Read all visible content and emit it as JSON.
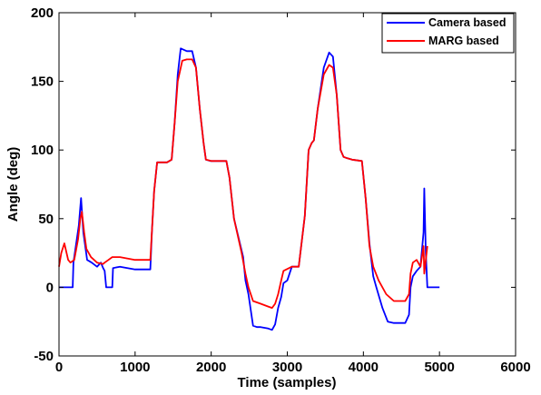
{
  "chart_data": {
    "type": "line",
    "xlabel": "Time (samples)",
    "ylabel": "Angle (deg)",
    "xlim": [
      0,
      6000
    ],
    "ylim": [
      -50,
      200
    ],
    "xticks": [
      0,
      1000,
      2000,
      3000,
      4000,
      5000,
      6000
    ],
    "yticks": [
      -50,
      0,
      50,
      100,
      150,
      200
    ],
    "grid": false,
    "legend_position": "top-right",
    "series": [
      {
        "name": "Camera based",
        "color": "#0000ff",
        "x": [
          0,
          180,
          190,
          260,
          290,
          320,
          370,
          430,
          500,
          550,
          580,
          600,
          620,
          700,
          710,
          800,
          1000,
          1150,
          1200,
          1220,
          1250,
          1290,
          1420,
          1480,
          1520,
          1560,
          1600,
          1680,
          1750,
          1800,
          1850,
          1900,
          1930,
          1990,
          2200,
          2240,
          2300,
          2420,
          2450,
          2490,
          2550,
          2600,
          2650,
          2750,
          2800,
          2840,
          2880,
          2920,
          2950,
          3000,
          3060,
          3150,
          3230,
          3280,
          3320,
          3350,
          3400,
          3480,
          3550,
          3600,
          3650,
          3700,
          3740,
          3790,
          3850,
          3980,
          4030,
          4080,
          4130,
          4170,
          4250,
          4320,
          4400,
          4550,
          4600,
          4620,
          4650,
          4700,
          4750,
          4790,
          4800,
          4820,
          4840,
          4900,
          5000
        ],
        "y": [
          0,
          0,
          18,
          45,
          65,
          40,
          20,
          18,
          15,
          18,
          14,
          12,
          0,
          0,
          14,
          15,
          13,
          13,
          13,
          40,
          70,
          91,
          91,
          93,
          120,
          155,
          174,
          172,
          172,
          160,
          130,
          105,
          93,
          92,
          92,
          80,
          50,
          22,
          5,
          -5,
          -28,
          -29,
          -29,
          -30,
          -31,
          -27,
          -15,
          -7,
          3,
          5,
          15,
          15,
          52,
          100,
          105,
          107,
          130,
          160,
          171,
          168,
          140,
          100,
          95,
          94,
          93,
          92,
          65,
          32,
          8,
          0,
          -15,
          -25,
          -26,
          -26,
          -20,
          0,
          8,
          12,
          15,
          40,
          72,
          25,
          0,
          0,
          0
        ]
      },
      {
        "name": "MARG based",
        "color": "#ff0000",
        "x": [
          0,
          30,
          70,
          120,
          150,
          200,
          250,
          280,
          300,
          330,
          360,
          420,
          500,
          580,
          600,
          650,
          700,
          800,
          1000,
          1150,
          1200,
          1220,
          1250,
          1290,
          1420,
          1480,
          1520,
          1560,
          1620,
          1680,
          1750,
          1800,
          1850,
          1900,
          1930,
          2000,
          2200,
          2240,
          2300,
          2400,
          2450,
          2490,
          2550,
          2650,
          2750,
          2800,
          2840,
          2880,
          2920,
          2950,
          3060,
          3150,
          3230,
          3280,
          3320,
          3350,
          3400,
          3480,
          3550,
          3600,
          3650,
          3700,
          3740,
          3790,
          3850,
          3980,
          4030,
          4080,
          4130,
          4200,
          4300,
          4400,
          4550,
          4600,
          4620,
          4650,
          4700,
          4750,
          4790,
          4800,
          4820,
          4840
        ],
        "y": [
          15,
          25,
          32,
          20,
          18,
          20,
          35,
          50,
          55,
          40,
          28,
          22,
          18,
          17,
          18,
          20,
          22,
          22,
          20,
          20,
          20,
          40,
          70,
          91,
          91,
          93,
          120,
          150,
          165,
          166,
          166,
          160,
          130,
          105,
          93,
          92,
          92,
          80,
          50,
          25,
          10,
          0,
          -10,
          -12,
          -14,
          -15,
          -12,
          -5,
          5,
          12,
          15,
          15,
          52,
          100,
          105,
          107,
          130,
          155,
          162,
          160,
          140,
          100,
          95,
          94,
          93,
          92,
          65,
          30,
          15,
          5,
          -5,
          -10,
          -10,
          -5,
          10,
          18,
          20,
          15,
          30,
          10,
          20,
          30
        ]
      }
    ]
  }
}
